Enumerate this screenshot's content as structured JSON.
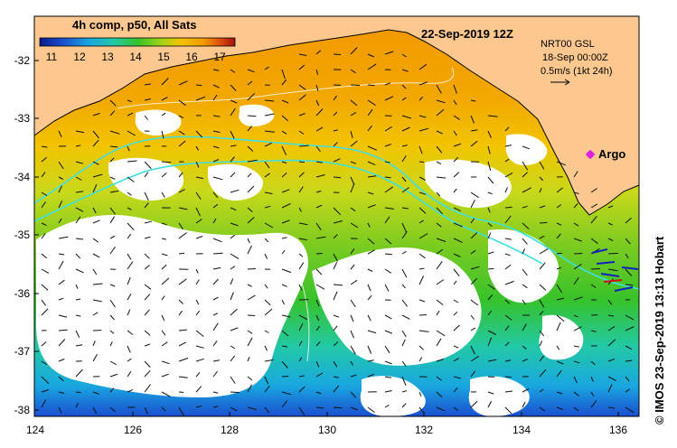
{
  "header": {
    "composite_label": "4h comp, p50, All Sats",
    "date_title": "22-Sep-2019 12Z"
  },
  "colorbar": {
    "ticks": [
      "11",
      "12",
      "13",
      "14",
      "15",
      "16",
      "17"
    ],
    "colors": [
      "#0a1a8c",
      "#1a4fd0",
      "#19a7e0",
      "#22c9a6",
      "#37c22b",
      "#9fd317",
      "#f2c400",
      "#f29a00",
      "#d9480a",
      "#a31010"
    ]
  },
  "legend_box": {
    "line1": "NRT00 GSL",
    "line2": "18-Sep 00:00Z",
    "line3": "0.5m/s (1kt 24h)"
  },
  "argo": {
    "label": "Argo",
    "color": "#e020e0"
  },
  "axes": {
    "x_ticks": [
      "124",
      "126",
      "128",
      "130",
      "132",
      "134",
      "136"
    ],
    "y_ticks": [
      "-32",
      "-33",
      "-34",
      "-35",
      "-36",
      "-37",
      "-38"
    ]
  },
  "colors": {
    "land": "#fdc890",
    "no_data": "#ffffff",
    "contour": "#40e0e0"
  },
  "credit": "© IMOS 23-Sep-2019 13:13 Hobart"
}
